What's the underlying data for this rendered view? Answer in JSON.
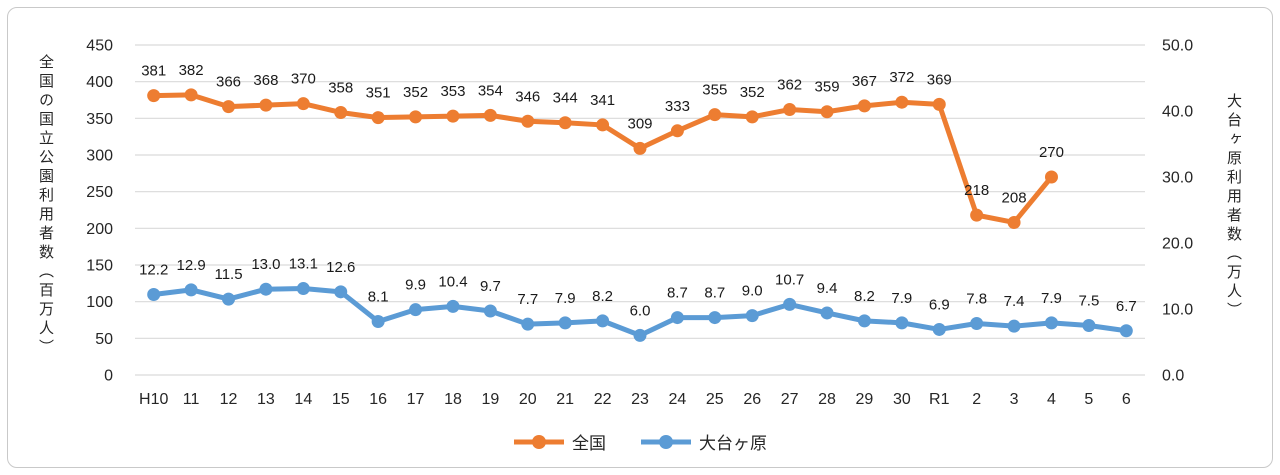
{
  "chart_data": {
    "type": "line",
    "categories": [
      "H10",
      "11",
      "12",
      "13",
      "14",
      "15",
      "16",
      "17",
      "18",
      "19",
      "20",
      "21",
      "22",
      "23",
      "24",
      "25",
      "26",
      "27",
      "28",
      "29",
      "30",
      "R1",
      "2",
      "3",
      "4",
      "5",
      "6"
    ],
    "series": [
      {
        "name": "全国",
        "axis": "left",
        "color": "#ED7D31",
        "label_decimals": 0,
        "values": [
          381,
          382,
          366,
          368,
          370,
          358,
          351,
          352,
          353,
          354,
          346,
          344,
          341,
          309,
          333,
          355,
          352,
          362,
          359,
          367,
          372,
          369,
          218,
          208,
          270,
          null,
          null
        ]
      },
      {
        "name": "大台ヶ原",
        "axis": "right",
        "color": "#5B9BD5",
        "label_decimals": 1,
        "values": [
          12.2,
          12.9,
          11.5,
          13.0,
          13.1,
          12.6,
          8.1,
          9.9,
          10.4,
          9.7,
          7.7,
          7.9,
          8.2,
          6.0,
          8.7,
          8.7,
          9.0,
          10.7,
          9.4,
          8.2,
          7.9,
          6.9,
          7.8,
          7.4,
          7.9,
          7.5,
          6.7
        ]
      }
    ],
    "left_axis": {
      "title": "全国の国立公園利用者数（百万人）",
      "min": 0,
      "max": 450,
      "step": 50,
      "tick_labels": [
        "0",
        "50",
        "100",
        "150",
        "200",
        "250",
        "300",
        "350",
        "400",
        "450"
      ]
    },
    "right_axis": {
      "title": "大台ヶ原利用者数（万人）",
      "min": 0,
      "max": 50,
      "step": 10,
      "tick_labels": [
        "0.0",
        "10.0",
        "20.0",
        "30.0",
        "40.0",
        "50.0"
      ]
    },
    "legend_position": "bottom-center",
    "grid": true,
    "colors": {
      "gridline": "#D9D9D9",
      "text": "#262626",
      "background": "#FFFFFF",
      "border": "#C9C9C9"
    }
  }
}
